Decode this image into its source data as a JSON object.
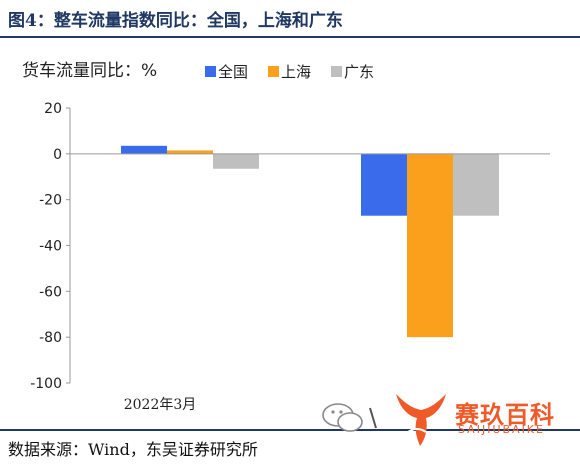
{
  "figure_title": "图4：整车流量指数同比：全国，上海和广东",
  "source": "数据来源：Wind，东吴证券研究所",
  "watermark": {
    "brand": "赛玖百科",
    "sub": "SAIJIUBAIKE",
    "icon": "fish-tail-logo-icon",
    "chat_icon": "wechat-icon"
  },
  "colors": {
    "title": "#1f3864",
    "全国": "#3a6bea",
    "上海": "#fba01d",
    "广东": "#bfbfbf",
    "axis": "#999999",
    "watermark": "#f05a28"
  },
  "chart_data": {
    "type": "bar",
    "title": "",
    "ylabel": "货车流量同比：%",
    "xlabel": "",
    "categories": [
      "2022年3月",
      ""
    ],
    "series": [
      {
        "name": "全国",
        "values": [
          3.5,
          -27
        ]
      },
      {
        "name": "上海",
        "values": [
          1.5,
          -80
        ]
      },
      {
        "name": "广东",
        "values": [
          -6.5,
          -27
        ]
      }
    ],
    "ylim": [
      -100,
      20
    ],
    "yticks": [
      20,
      0,
      -20,
      -40,
      -60,
      -80,
      -100
    ],
    "legend_position": "top",
    "grid": false
  }
}
